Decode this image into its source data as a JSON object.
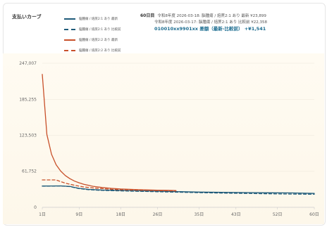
{
  "card_title": "支払いカーブ",
  "legend": [
    {
      "label": "脳腫瘍 / 焙蔗2:1 あり 最新",
      "color": "#1f5b7a",
      "dashed": false
    },
    {
      "label": "脳腫瘍 / 焙蔗2:1 あり 比較前",
      "color": "#1f5b7a",
      "dashed": true
    },
    {
      "label": "脳腫瘍 / 焙蔗2:2 あり 最新",
      "color": "#c8502a",
      "dashed": false
    },
    {
      "label": "脳腫瘍 / 焙蔗2:2 あり 比較前",
      "color": "#c8502a",
      "dashed": true
    }
  ],
  "info": {
    "day_label": "60日目",
    "line1": "令和8年度 2026-03-18: 脳腫瘍 / 焙蔗2:1 あり 最新 ¥23,899",
    "line2": "令和8年度 2026-03-17: 脳腫瘍 / 焙蔗2:1 あり 比較前 ¥22,358",
    "line3": "010010xx9901xx 差額（最新-比較前） +¥1,541"
  },
  "colors": {
    "blue": "#1f5b7a",
    "orange": "#c8502a"
  },
  "chart_data": {
    "type": "line",
    "ylim": [
      0,
      247007
    ],
    "yticks": [
      0,
      61752,
      123503,
      185255,
      247007
    ],
    "ytick_labels": [
      "0",
      "61,752",
      "123,503",
      "185,255",
      "247,007"
    ],
    "xlim": [
      1,
      60
    ],
    "xticks": [
      1,
      9,
      18,
      26,
      35,
      43,
      52,
      60
    ],
    "xtick_labels": [
      "1日",
      "9日",
      "18日",
      "26日",
      "35日",
      "43日",
      "52日",
      "60日"
    ],
    "series": [
      {
        "name": "脳腫瘍 / 焙蔗2:1 あり 最新",
        "color": "#1f5b7a",
        "dashed": false,
        "x": [
          1,
          3,
          5,
          7,
          9,
          11,
          14,
          18,
          22,
          26,
          30,
          35,
          40,
          45,
          50,
          55,
          60
        ],
        "y": [
          36500,
          36600,
          36700,
          35800,
          32500,
          30800,
          29700,
          29000,
          28300,
          27700,
          27000,
          26200,
          25700,
          25300,
          25000,
          24700,
          23899
        ]
      },
      {
        "name": "脳腫瘍 / 焙蔗2:1 あり 比較前",
        "color": "#1f5b7a",
        "dashed": true,
        "x": [
          1,
          3,
          5,
          7,
          9,
          11,
          14,
          18,
          22,
          26,
          30,
          35,
          40,
          45,
          50,
          55,
          60
        ],
        "y": [
          36300,
          36500,
          36600,
          35600,
          32000,
          30200,
          29000,
          28200,
          27500,
          26800,
          26000,
          25200,
          24500,
          23900,
          23300,
          22800,
          22358
        ]
      },
      {
        "name": "脳腫瘍 / 焙蔗2:2 あり 最新",
        "color": "#c8502a",
        "dashed": false,
        "x": [
          1,
          2,
          3,
          4,
          5,
          6,
          7,
          8,
          9,
          10,
          12,
          14,
          16,
          18,
          20,
          22,
          24,
          26,
          28,
          30
        ],
        "y": [
          228000,
          125000,
          91000,
          73000,
          62000,
          54500,
          49000,
          45000,
          42000,
          39500,
          36000,
          34000,
          32500,
          31500,
          30800,
          30200,
          29800,
          29400,
          29100,
          28800
        ]
      },
      {
        "name": "脳腫瘍 / 焙蔗2:2 あり 比較前",
        "color": "#c8502a",
        "dashed": true,
        "x": [
          1,
          2,
          3,
          4,
          5,
          6,
          7,
          8,
          9,
          10,
          12,
          14,
          16,
          18,
          20,
          22,
          24,
          26,
          28,
          30
        ],
        "y": [
          47000,
          47000,
          47000,
          47000,
          44000,
          41500,
          39500,
          37800,
          36300,
          35000,
          33300,
          32000,
          31000,
          30300,
          29800,
          29400,
          29000,
          28700,
          28400,
          28100
        ]
      }
    ]
  }
}
